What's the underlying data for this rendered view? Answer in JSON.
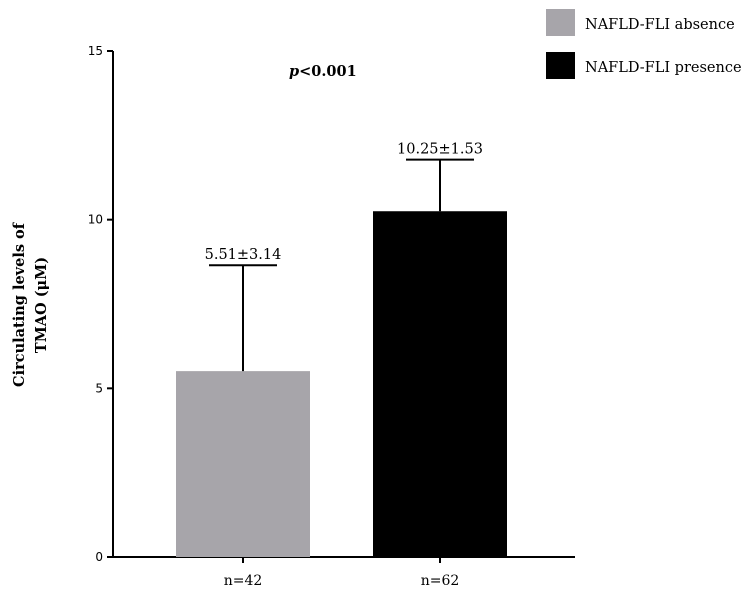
{
  "chart_data": {
    "type": "bar",
    "title": "",
    "xlabel": "",
    "ylabel_line1": "Circulating levels of",
    "ylabel_line2": "TMAO (μM)",
    "ylim": [
      0,
      15
    ],
    "yticks": [
      0,
      5,
      10,
      15
    ],
    "categories": [
      "n=42",
      "n=62"
    ],
    "series": [
      {
        "name": "NAFLD-FLI absence",
        "color": "#a7a5aa",
        "values": [
          5.51,
          null
        ],
        "errors": [
          3.14,
          null
        ],
        "value_labels": [
          "5.51±3.14",
          ""
        ]
      },
      {
        "name": "NAFLD-FLI presence",
        "color": "#000000",
        "values": [
          null,
          10.25
        ],
        "errors": [
          null,
          1.53
        ],
        "value_labels": [
          "",
          "10.25±1.53"
        ]
      }
    ],
    "annotation_italic": "p",
    "annotation_rest": "<0.001",
    "grid": false,
    "legend_position": "top-right"
  }
}
